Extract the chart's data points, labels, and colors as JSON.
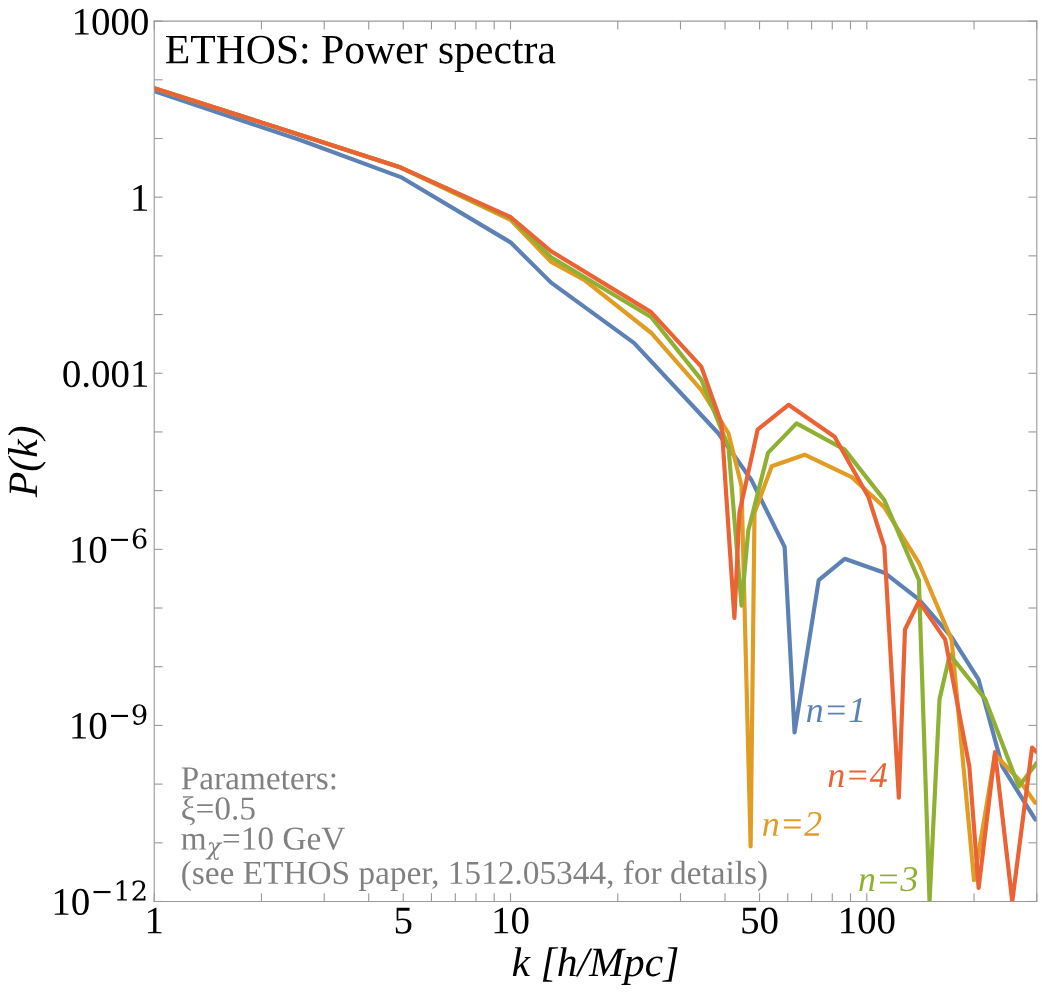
{
  "chart_data": {
    "type": "line",
    "title": "ETHOS: Power spectra",
    "xlabel": "k [h/Mpc]",
    "ylabel": "P(k)",
    "log": "xy",
    "grid": false,
    "legend": false,
    "marker": "none",
    "line_style": "solid",
    "xlim": [
      1,
      300
    ],
    "ylim": [
      1e-12,
      1000
    ],
    "xticks": [
      1,
      {
        "value": 2,
        "label": null
      },
      {
        "value": 3,
        "label": null
      },
      {
        "value": 4,
        "label": null
      },
      5,
      {
        "value": 6,
        "label": null
      },
      {
        "value": 7,
        "label": null
      },
      {
        "value": 8,
        "label": null
      },
      {
        "value": 9,
        "label": null
      },
      10,
      {
        "value": 20,
        "label": null
      },
      {
        "value": 30,
        "label": null
      },
      {
        "value": 40,
        "label": null
      },
      50,
      {
        "value": 60,
        "label": null
      },
      {
        "value": 70,
        "label": null
      },
      {
        "value": 80,
        "label": null
      },
      {
        "value": 90,
        "label": null
      },
      100,
      {
        "value": 200,
        "label": null
      },
      {
        "value": 300,
        "label": null
      }
    ],
    "yticks": [
      {
        "value": 1e-12,
        "label": "10$^{−12}$"
      },
      {
        "value": 1e-11,
        "label": null
      },
      {
        "value": 1e-10,
        "label": null
      },
      {
        "value": 1e-09,
        "label": "10$^{−9}$"
      },
      {
        "value": 1e-08,
        "label": null
      },
      {
        "value": 1e-07,
        "label": null
      },
      {
        "value": 1e-06,
        "label": "10$^{−6}$"
      },
      {
        "value": 1e-05,
        "label": null
      },
      {
        "value": 0.0001,
        "label": null
      },
      0.001,
      {
        "value": 0.01,
        "label": null
      },
      {
        "value": 0.1,
        "label": null
      },
      1,
      {
        "value": 10,
        "label": null
      },
      {
        "value": 100,
        "label": null
      },
      1000
    ],
    "annotations": [
      "Parameters:\nξ=0.5\nm$_{χ}$=10 GeV\n(see ETHOS paper, 1512.05344, for details)"
    ],
    "series": [
      {
        "name": "n=1",
        "color": "#5e81b5",
        "x": [
          1,
          2.57,
          4.92,
          10,
          13,
          22.2,
          38.3,
          47.5,
          58.8,
          62.7,
          73.3,
          86.7,
          112,
          140,
          173,
          206,
          240,
          297
        ],
        "values": [
          64,
          9.4,
          2.2,
          0.17,
          0.035,
          0.0033,
          9.5e-05,
          1.5e-05,
          1.1e-06,
          7.6e-10,
          3e-07,
          6.9e-07,
          4e-07,
          1.4e-07,
          3.2e-08,
          6e-09,
          2e-10,
          2.5e-11
        ]
      },
      {
        "name": "n=2",
        "color": "#e19c24",
        "x": [
          1,
          2.57,
          4.92,
          10,
          13,
          16.1,
          24.8,
          34.3,
          40.9,
          44.5,
          47.2,
          48.4,
          54.1,
          66.9,
          90.7,
          112,
          140,
          173,
          200,
          229,
          267,
          297
        ],
        "values": [
          72,
          11.5,
          3.2,
          0.41,
          0.079,
          0.039,
          0.0049,
          0.00052,
          9.5e-05,
          1.2e-05,
          8.7e-12,
          4.2e-06,
          2.6e-05,
          4.1e-05,
          1.7e-05,
          5.2e-06,
          5.9e-07,
          2.9e-08,
          2.3e-12,
          3.2e-10,
          1.2e-10,
          4.8e-11
        ]
      },
      {
        "name": "n=3",
        "color": "#8fb032",
        "x": [
          1,
          2.57,
          4.92,
          10,
          13,
          24.8,
          34.3,
          40.9,
          44.5,
          46.5,
          52.8,
          63.5,
          86.7,
          112,
          140,
          150,
          160,
          171,
          215,
          267,
          300
        ],
        "values": [
          72,
          11.5,
          3.2,
          0.44,
          0.095,
          0.0091,
          0.00078,
          5.6e-05,
          1.1e-07,
          2.1e-06,
          4.4e-05,
          0.00014,
          5e-05,
          6.9e-06,
          3e-07,
          1e-12,
          2.8e-09,
          1.6e-08,
          2.8e-09,
          9.1e-11,
          2.3e-10
        ]
      },
      {
        "name": "n=4",
        "color": "#eb6235",
        "x": [
          1,
          2.57,
          4.92,
          10,
          13,
          24.8,
          34.3,
          39.1,
          42.5,
          43.9,
          49.4,
          60.3,
          81.2,
          101,
          112,
          123,
          128,
          140,
          166,
          194,
          206,
          229,
          256,
          291,
          300
        ],
        "values": [
          72,
          11.5,
          3.2,
          0.46,
          0.12,
          0.011,
          0.0013,
          0.00014,
          6.8e-08,
          4.2e-06,
          0.00011,
          0.00029,
          8.3e-05,
          7.9e-06,
          1.1e-06,
          5.9e-11,
          4.3e-08,
          1.3e-07,
          2.9e-08,
          2e-10,
          1.7e-12,
          3.5e-10,
          1e-12,
          4.2e-10,
          3.5e-10
        ]
      }
    ]
  }
}
